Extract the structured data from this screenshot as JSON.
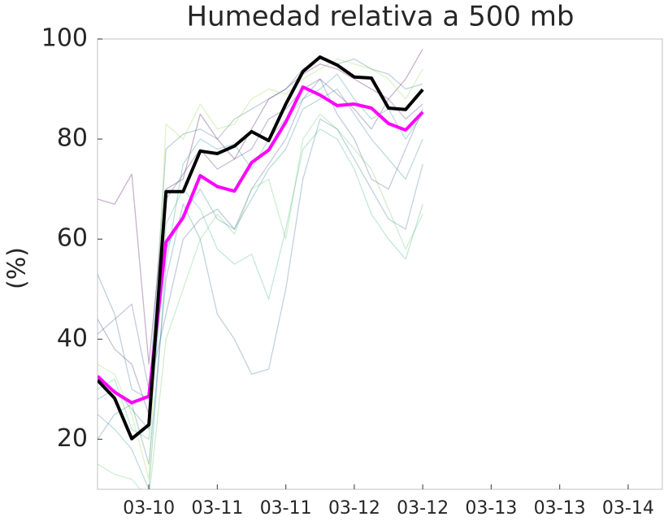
{
  "chart_data": {
    "type": "line",
    "title": "Humedad relativa a 500 mb",
    "ylabel": "(%)",
    "x": [
      3,
      6,
      9,
      12,
      15,
      18,
      21,
      24,
      27,
      30,
      33,
      36,
      39,
      42,
      45,
      48,
      51,
      54,
      57,
      60
    ],
    "xlim": [
      3,
      102
    ],
    "xticks": [
      {
        "value": 12,
        "label": "03-10"
      },
      {
        "value": 24,
        "label": "03-11"
      },
      {
        "value": 36,
        "label": "03-11"
      },
      {
        "value": 48,
        "label": "03-12"
      },
      {
        "value": 60,
        "label": "03-12"
      },
      {
        "value": 72,
        "label": "03-13"
      },
      {
        "value": 84,
        "label": "03-13"
      },
      {
        "value": 96,
        "label": "03-14"
      }
    ],
    "ylim": [
      10,
      100
    ],
    "yticks": [
      20,
      40,
      60,
      80,
      100
    ],
    "grid": false,
    "series": [
      {
        "color": "#440154",
        "linewidth": 1.3,
        "alpha": 0.3,
        "values": [
          68,
          67,
          73,
          35,
          70,
          72,
          85,
          80,
          76,
          82,
          88,
          90,
          93,
          95,
          94,
          92,
          90,
          88,
          92,
          98
        ]
      },
      {
        "color": "#3b528b",
        "linewidth": 1.3,
        "alpha": 0.3,
        "values": [
          41,
          44,
          47,
          30,
          45,
          60,
          64,
          66,
          62,
          70,
          75,
          80,
          88,
          92,
          85,
          80,
          72,
          70,
          78,
          86
        ]
      },
      {
        "color": "#21918c",
        "linewidth": 1.3,
        "alpha": 0.3,
        "values": [
          25,
          22,
          18,
          10,
          55,
          75,
          80,
          78,
          79,
          74,
          80,
          84,
          88,
          90,
          93,
          88,
          84,
          86,
          80,
          85
        ]
      },
      {
        "color": "#5ec962",
        "linewidth": 1.3,
        "alpha": 0.3,
        "values": [
          15,
          13,
          12,
          8,
          40,
          50,
          60,
          65,
          61,
          70,
          72,
          60,
          80,
          85,
          82,
          78,
          74,
          66,
          58,
          65
        ]
      },
      {
        "color": "#31688e",
        "linewidth": 1.3,
        "alpha": 0.3,
        "values": [
          53,
          45,
          30,
          28,
          78,
          81,
          82,
          80,
          84,
          86,
          88,
          90,
          94,
          96,
          95,
          96,
          94,
          93,
          90,
          91
        ]
      },
      {
        "color": "#35b779",
        "linewidth": 1.3,
        "alpha": 0.3,
        "values": [
          30,
          32,
          22,
          20,
          63,
          70,
          66,
          58,
          55,
          57,
          48,
          62,
          78,
          82,
          80,
          74,
          65,
          60,
          56,
          67
        ]
      },
      {
        "color": "#472d7b",
        "linewidth": 1.3,
        "alpha": 0.3,
        "values": [
          44,
          38,
          35,
          25,
          68,
          73,
          78,
          74,
          76,
          78,
          84,
          86,
          90,
          92,
          89,
          86,
          82,
          88,
          84,
          87
        ]
      },
      {
        "color": "#2c728e",
        "linewidth": 1.3,
        "alpha": 0.3,
        "values": [
          20,
          25,
          27,
          15,
          52,
          67,
          60,
          45,
          40,
          33,
          34,
          50,
          72,
          84,
          82,
          76,
          70,
          64,
          62,
          75
        ]
      },
      {
        "color": "#90d743",
        "linewidth": 1.3,
        "alpha": 0.3,
        "values": [
          35,
          33,
          25,
          12,
          83,
          80,
          87,
          82,
          83,
          88,
          90,
          89,
          92,
          94,
          96,
          95,
          94,
          92,
          88,
          94
        ]
      },
      {
        "color": "#26828e",
        "linewidth": 1.3,
        "alpha": 0.3,
        "values": [
          28,
          30,
          26,
          22,
          58,
          65,
          70,
          64,
          62,
          68,
          74,
          78,
          86,
          88,
          90,
          85,
          80,
          76,
          72,
          80
        ]
      },
      {
        "color": "#ff00ff",
        "linewidth": 4,
        "alpha": 1,
        "values": [
          32.6,
          29.4,
          27.3,
          28.6,
          59.4,
          64.3,
          72.7,
          70.5,
          69.6,
          75.3,
          77.8,
          83.4,
          90.4,
          88.8,
          86.7,
          87,
          86.2,
          83.1,
          81.8,
          85.4
        ]
      },
      {
        "color": "#000000",
        "linewidth": 4,
        "alpha": 1,
        "values": [
          31.8,
          28.2,
          20.1,
          22.9,
          69.5,
          69.5,
          77.6,
          77.1,
          78.6,
          81.5,
          79.7,
          87,
          93.5,
          96.4,
          94.8,
          92.4,
          92.2,
          86.2,
          85.9,
          89.9
        ]
      }
    ]
  }
}
